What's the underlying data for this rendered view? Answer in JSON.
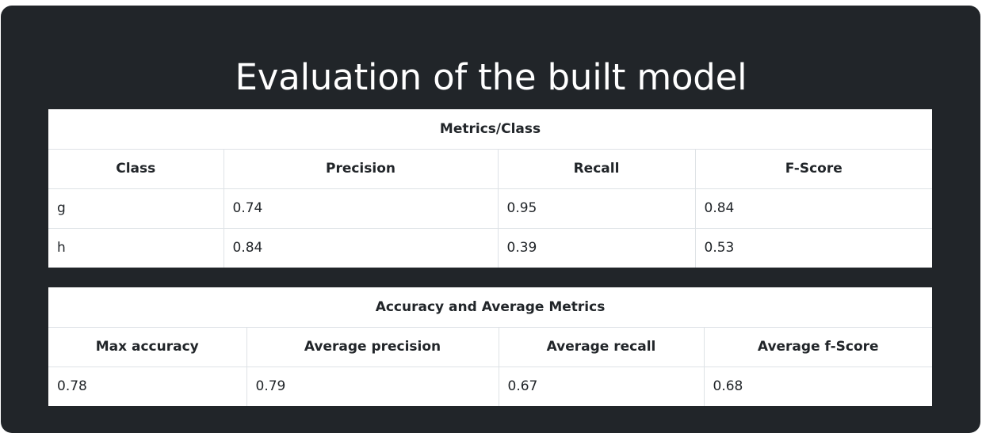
{
  "page": {
    "title": "Evaluation of the built model"
  },
  "class_table": {
    "caption": "Metrics/Class",
    "headers": [
      "Class",
      "Precision",
      "Recall",
      "F-Score"
    ],
    "rows": [
      [
        "g",
        "0.74",
        "0.95",
        "0.84"
      ],
      [
        "h",
        "0.84",
        "0.39",
        "0.53"
      ]
    ]
  },
  "average_table": {
    "caption": "Accuracy and Average Metrics",
    "headers": [
      "Max accuracy",
      "Average precision",
      "Average recall",
      "Average f-Score"
    ],
    "rows": [
      [
        "0.78",
        "0.79",
        "0.67",
        "0.68"
      ]
    ]
  },
  "colors": {
    "background": "#212529",
    "table_background": "#ffffff",
    "border": "#dee2e6",
    "title_text": "#ffffff"
  }
}
